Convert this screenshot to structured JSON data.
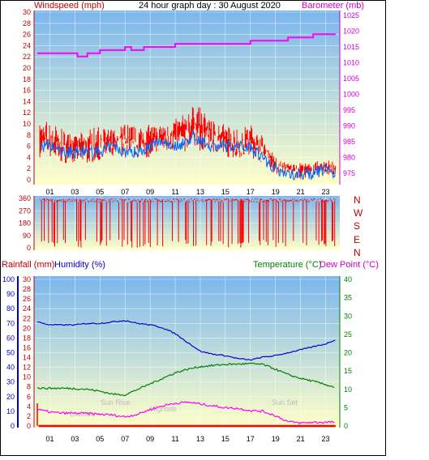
{
  "header": {
    "windspeed_label": "Windspeed (mph)",
    "title": "24 hour graph day : 30 August 2020",
    "barometer_label": "Barometer (mb)"
  },
  "colors": {
    "wind": "#ff0000",
    "gust_avg": "#0066ff",
    "barometer": "#ff00ff",
    "rain": "#ff0000",
    "humidity": "#0000cc",
    "temperature": "#008000",
    "dewpoint": "#ff00ff",
    "sky_top": "#7ab6ee",
    "sky_bottom": "#ffffc8"
  },
  "lower_header": {
    "rainfall_label": "Rainfall (mm)",
    "humidity_label": "Humidity (%)",
    "temperature_label": "Temperature (°C)",
    "dewpoint_label": "Dew Point (°C)"
  },
  "annotations": {
    "sunrise": "Sun Rise",
    "sunset": "Sun Set",
    "lowtide": "Lowtide",
    "hightide": "Hightide"
  },
  "chart_data": [
    {
      "type": "line",
      "name": "wind-barometer",
      "x_ticks": [
        "01",
        "03",
        "05",
        "07",
        "09",
        "11",
        "13",
        "15",
        "17",
        "19",
        "21",
        "23"
      ],
      "left_ticks": [
        "0",
        "2",
        "4",
        "6",
        "8",
        "10",
        "12",
        "14",
        "16",
        "18",
        "20",
        "22",
        "24",
        "26",
        "28",
        "30"
      ],
      "right_ticks": [
        "975",
        "980",
        "985",
        "990",
        "995",
        "1000",
        "1005",
        "1010",
        "1015",
        "1020",
        "1025"
      ],
      "ylim_left": [
        0,
        30
      ],
      "ylim_right": [
        973,
        1026
      ],
      "x_hours": [
        0,
        1,
        2,
        3,
        4,
        5,
        6,
        7,
        8,
        9,
        10,
        11,
        12,
        12.5,
        13,
        14,
        15,
        16,
        17,
        18,
        19,
        20,
        21,
        22,
        23,
        23.8
      ],
      "wind_hi": [
        10,
        11,
        9,
        8,
        9,
        10,
        9,
        11,
        9,
        10,
        10,
        11,
        12,
        14,
        13,
        11,
        10,
        9,
        10,
        8,
        4,
        3,
        3,
        3,
        4,
        3
      ],
      "wind_lo": [
        4,
        4,
        3,
        3,
        3,
        3,
        4,
        4,
        4,
        4,
        5,
        5,
        5,
        6,
        5,
        5,
        4,
        4,
        4,
        3,
        1,
        1,
        0,
        1,
        1,
        0
      ],
      "avg": [
        6,
        6,
        5,
        5,
        5,
        5,
        6,
        5,
        5,
        6,
        7,
        6,
        7,
        8,
        7,
        6,
        6,
        6,
        6,
        4,
        2,
        1,
        1,
        1,
        2,
        1
      ],
      "baro_x": [
        0,
        3,
        3.2,
        4,
        5,
        7,
        7.5,
        8.5,
        11,
        12,
        13,
        15,
        17,
        19,
        20,
        21,
        22,
        23,
        23.8
      ],
      "baro": [
        1013,
        1013,
        1012,
        1013,
        1014,
        1015,
        1014,
        1015,
        1016,
        1016,
        1016,
        1016,
        1017,
        1017,
        1018,
        1018,
        1019,
        1019,
        1019
      ]
    },
    {
      "type": "scatter",
      "name": "wind-direction",
      "left_ticks": [
        "0",
        "90",
        "180",
        "270",
        "360"
      ],
      "right_labels": [
        "N",
        "W",
        "S",
        "E",
        "N"
      ],
      "ylim": [
        0,
        360
      ]
    },
    {
      "type": "line",
      "name": "rain-humidity-temp-dew",
      "x_ticks": [
        "01",
        "03",
        "05",
        "07",
        "09",
        "11",
        "13",
        "15",
        "17",
        "19",
        "21",
        "23"
      ],
      "humidity_ticks": [
        "0",
        "10",
        "20",
        "30",
        "40",
        "50",
        "60",
        "70",
        "80",
        "90",
        "100"
      ],
      "rain_ticks": [
        "0",
        "2",
        "4",
        "6",
        "8",
        "10",
        "12",
        "14",
        "16",
        "18",
        "20",
        "22",
        "24",
        "26",
        "28",
        "30"
      ],
      "temp_ticks": [
        "0",
        "5",
        "10",
        "15",
        "20",
        "25",
        "30",
        "35",
        "40"
      ],
      "humidity_x": [
        0,
        1,
        2,
        3,
        4,
        5,
        6,
        7,
        8,
        9,
        10,
        11,
        12,
        13,
        14,
        15,
        16,
        17,
        18,
        19,
        20,
        21,
        22,
        23,
        23.8
      ],
      "humidity": [
        71,
        69,
        69,
        69,
        70,
        70,
        71,
        72,
        70,
        69,
        67,
        63,
        57,
        51,
        49,
        48,
        46,
        45,
        47,
        48,
        50,
        52,
        54,
        56,
        59
      ],
      "temperature_x": [
        0,
        1,
        2,
        3,
        4,
        5,
        6,
        7,
        8,
        9,
        10,
        11,
        12,
        13,
        14,
        15,
        16,
        17,
        18,
        19,
        20,
        21,
        22,
        23,
        23.8
      ],
      "temperature": [
        10.3,
        10.3,
        10.3,
        10.2,
        10.0,
        9.5,
        8.7,
        8.5,
        10,
        11.5,
        13,
        14.5,
        15.5,
        16.2,
        16.5,
        16.8,
        16.9,
        17,
        16.8,
        15.5,
        14,
        13,
        12.2,
        11.3,
        10.5
      ],
      "dewpoint_x": [
        0,
        1,
        2,
        3,
        4,
        5,
        6,
        7,
        8,
        9,
        10,
        11,
        12,
        13,
        14,
        15,
        16,
        17,
        18,
        19,
        20,
        21,
        22,
        23,
        23.8
      ],
      "dewpoint": [
        4.5,
        3.8,
        3.5,
        3.5,
        3.4,
        3.2,
        3.0,
        2.5,
        3.2,
        4.5,
        5.5,
        6.2,
        6.5,
        6.0,
        5.5,
        5.0,
        4.8,
        4.2,
        4.0,
        2.8,
        1.2,
        0.8,
        1.0,
        1.0,
        1.1
      ],
      "rain_total": 0
    }
  ]
}
